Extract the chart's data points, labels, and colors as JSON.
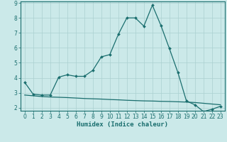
{
  "xlabel": "Humidex (Indice chaleur)",
  "bg_color": "#cbe9e9",
  "grid_color": "#aad0d0",
  "line_color": "#1a6e6e",
  "x_values": [
    0,
    1,
    2,
    3,
    4,
    5,
    6,
    7,
    8,
    9,
    10,
    11,
    12,
    13,
    14,
    15,
    16,
    17,
    18,
    19,
    20,
    21,
    22,
    23
  ],
  "y_curve": [
    3.7,
    2.9,
    2.85,
    2.85,
    4.05,
    4.2,
    4.1,
    4.1,
    4.5,
    5.4,
    5.55,
    6.9,
    8.0,
    8.0,
    7.45,
    8.85,
    7.5,
    5.95,
    4.35,
    2.45,
    2.2,
    1.75,
    1.9,
    2.1
  ],
  "y_baseline": [
    2.85,
    2.8,
    2.75,
    2.72,
    2.7,
    2.68,
    2.65,
    2.62,
    2.6,
    2.58,
    2.55,
    2.53,
    2.5,
    2.48,
    2.46,
    2.45,
    2.43,
    2.42,
    2.4,
    2.38,
    2.35,
    2.3,
    2.25,
    2.2
  ],
  "ylim_min": 1.8,
  "ylim_max": 9.1,
  "xlim_min": -0.5,
  "xlim_max": 23.5,
  "yticks": [
    2,
    3,
    4,
    5,
    6,
    7,
    8,
    9
  ],
  "xticks": [
    0,
    1,
    2,
    3,
    4,
    5,
    6,
    7,
    8,
    9,
    10,
    11,
    12,
    13,
    14,
    15,
    16,
    17,
    18,
    19,
    20,
    21,
    22,
    23
  ],
  "tick_fontsize": 5.5,
  "label_fontsize": 6.5
}
